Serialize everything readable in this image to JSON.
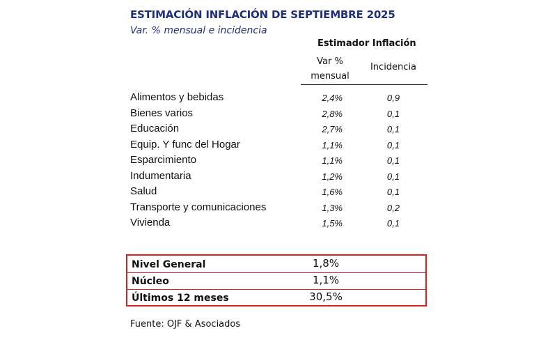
{
  "title": "ESTIMACIÓN INFLACIÓN DE SEPTIEMBRE 2025",
  "subtitle": "Var. % mensual e incidencia",
  "group_header": "Estimador Inflación",
  "columns": {
    "var_line1": "Var %",
    "var_line2": "mensual",
    "incidencia": "Incidencia"
  },
  "rows": [
    {
      "label": "Alimentos y bebidas",
      "var": "2,4%",
      "inc": "0,9"
    },
    {
      "label": "Bienes varios",
      "var": "2,8%",
      "inc": "0,1"
    },
    {
      "label": "Educación",
      "var": "2,7%",
      "inc": "0,1"
    },
    {
      "label": "Equip. Y func del Hogar",
      "var": "1,1%",
      "inc": "0,1"
    },
    {
      "label": "Esparcimiento",
      "var": "1,1%",
      "inc": "0,1"
    },
    {
      "label": "Indumentaria",
      "var": "1,2%",
      "inc": "0,1"
    },
    {
      "label": "Salud",
      "var": "1,6%",
      "inc": "0,1"
    },
    {
      "label": "Transporte y comunicaciones",
      "var": "1,3%",
      "inc": "0,2"
    },
    {
      "label": "Vivienda",
      "var": "1,5%",
      "inc": "0,1"
    }
  ],
  "summary": [
    {
      "label": "Nivel General",
      "value": "1,8%"
    },
    {
      "label": "Núcleo",
      "value": "1,1%"
    },
    {
      "label": "Últimos 12 meses",
      "value": "30,5%"
    }
  ],
  "source": "Fuente: OJF & Asociados",
  "colors": {
    "title": "#1f2f7a",
    "highlight_border": "#d82020"
  }
}
